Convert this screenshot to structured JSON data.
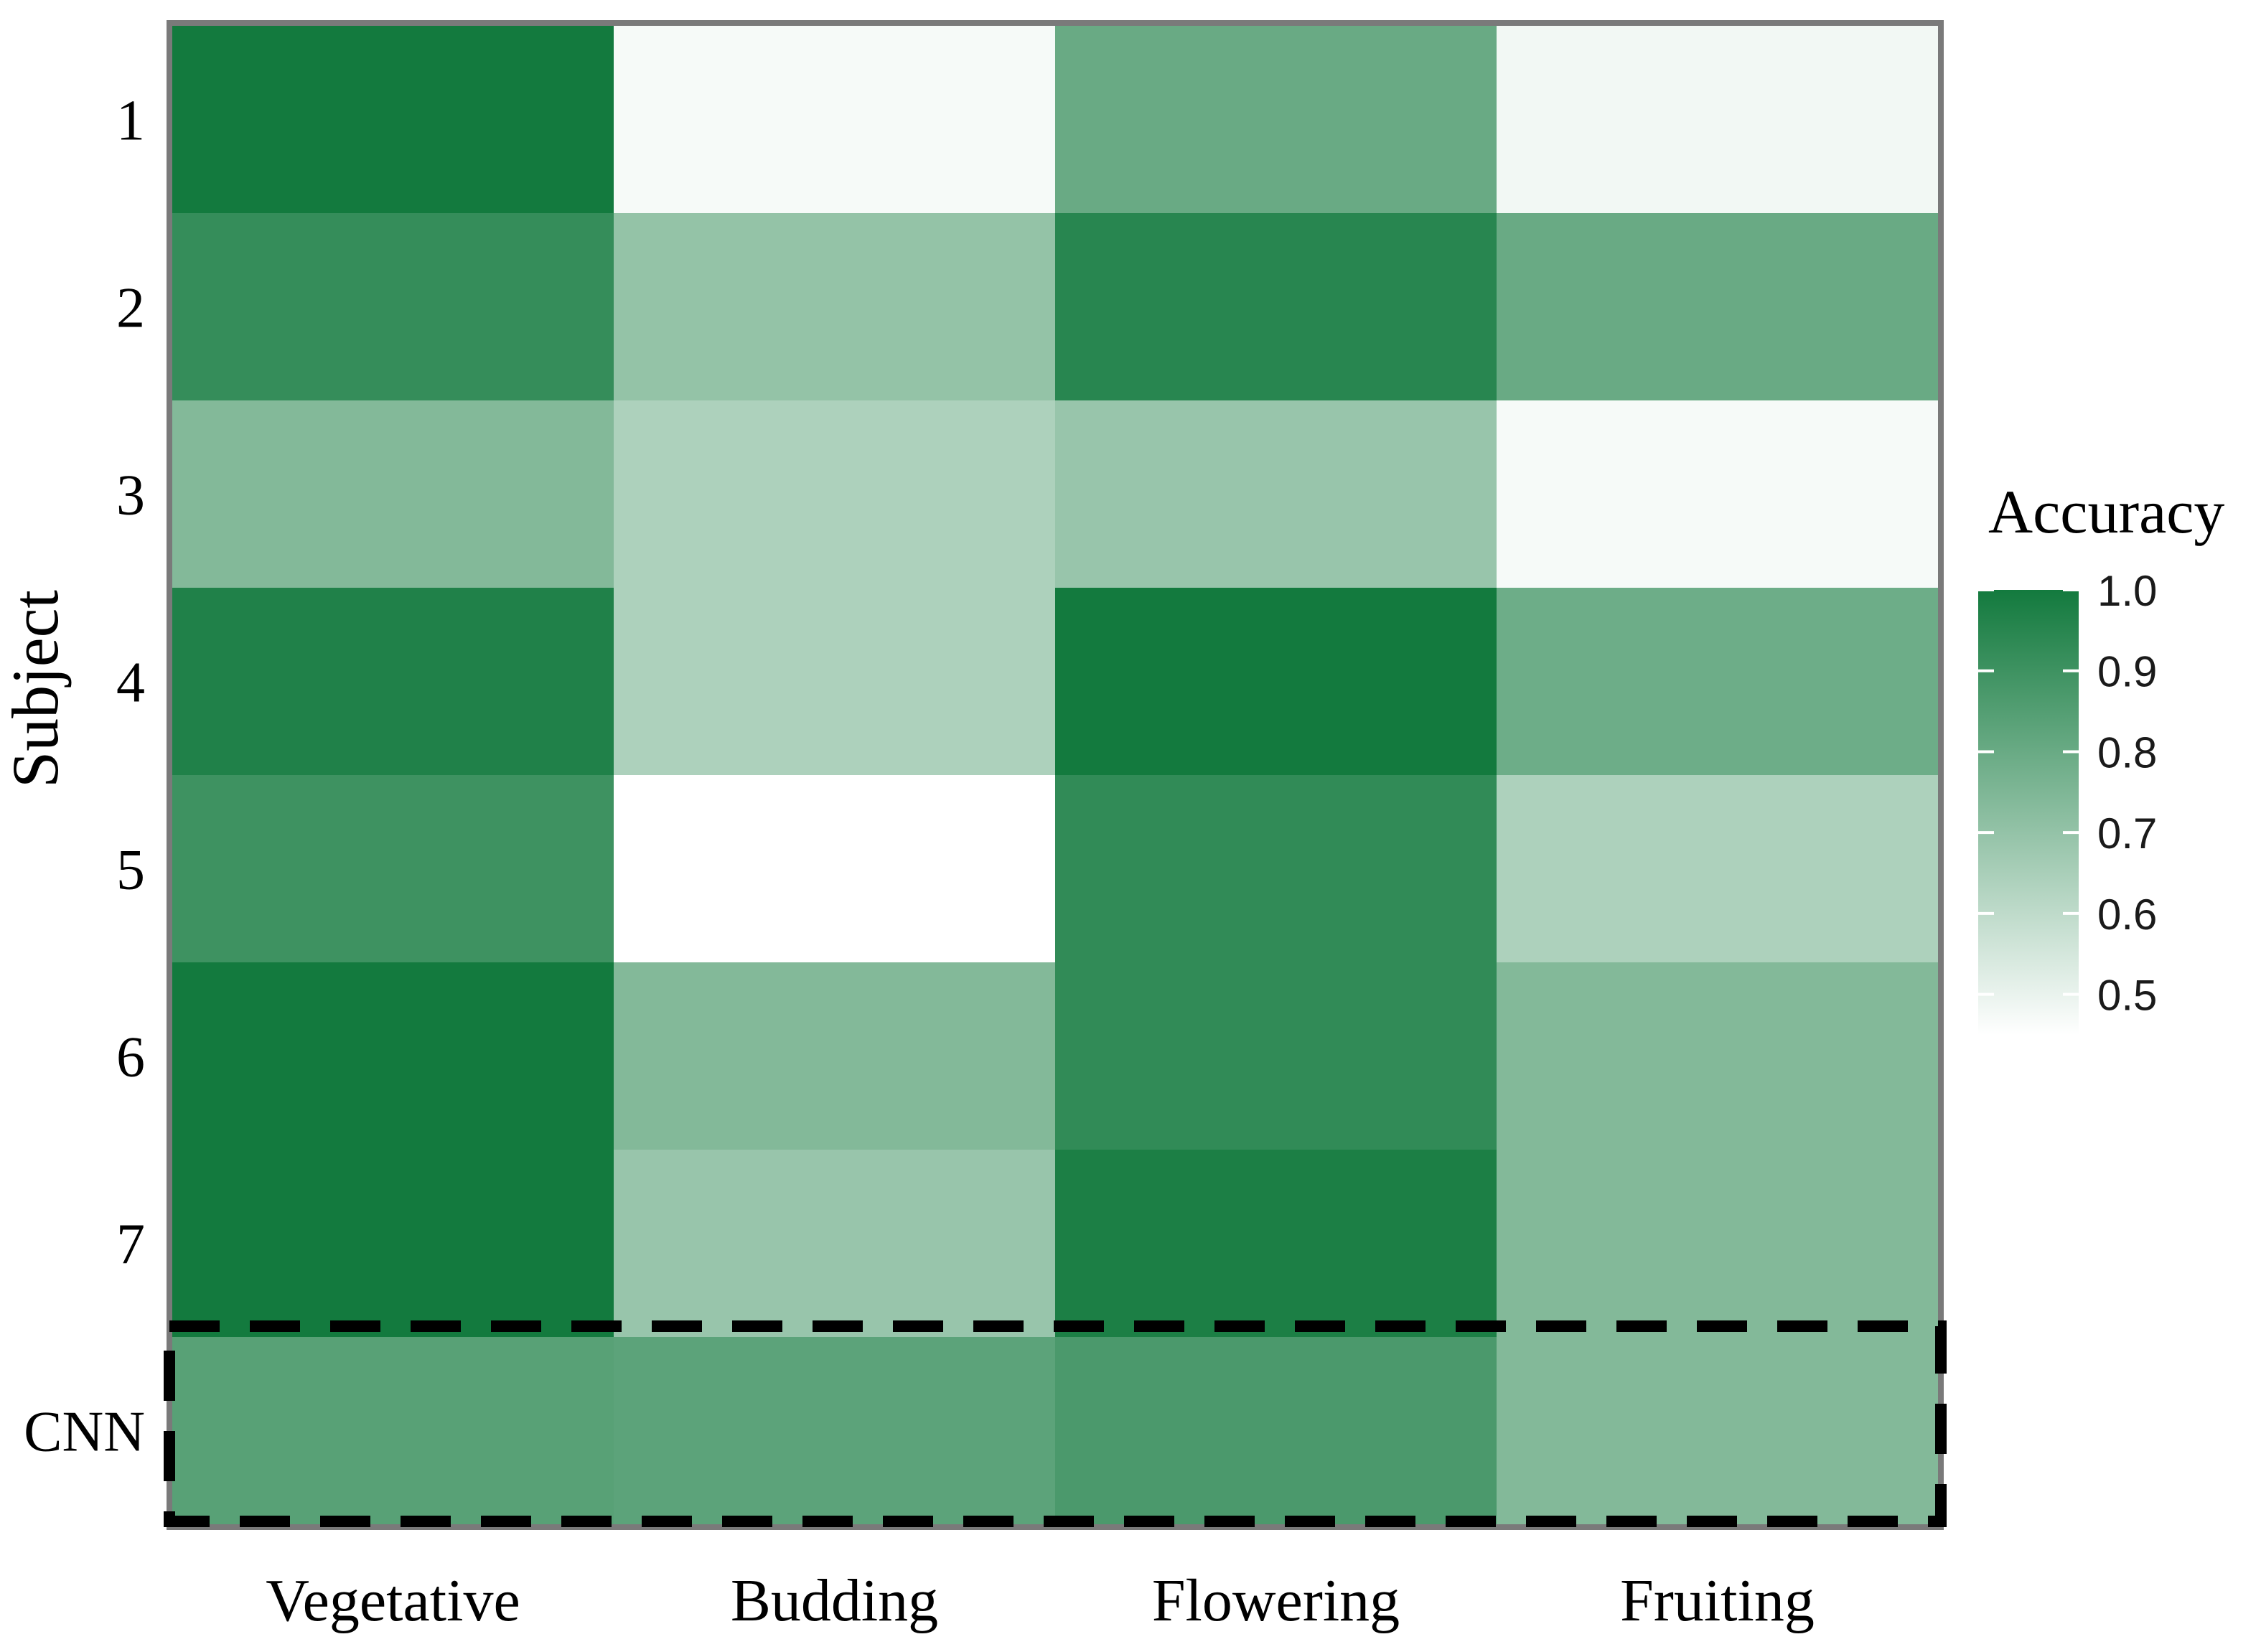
{
  "chart_data": {
    "type": "heatmap",
    "columns": [
      "Vegetative",
      "Budding",
      "Flowering",
      "Fruiting"
    ],
    "rows": [
      "1",
      "2",
      "3",
      "4",
      "5",
      "6",
      "7",
      "CNN"
    ],
    "values": [
      [
        1.0,
        0.47,
        0.8,
        0.48
      ],
      [
        0.92,
        0.7,
        0.95,
        0.8
      ],
      [
        0.74,
        0.64,
        0.69,
        0.47
      ],
      [
        0.97,
        0.64,
        1.0,
        0.79
      ],
      [
        0.9,
        0.42,
        0.93,
        0.64
      ],
      [
        1.0,
        0.74,
        0.93,
        0.74
      ],
      [
        1.0,
        0.69,
        0.98,
        0.74
      ],
      [
        0.84,
        0.83,
        0.87,
        0.74
      ]
    ],
    "ylabel": "Subject",
    "xlabel": "",
    "legend": {
      "title": "Accuracy",
      "ticks": [
        "1.0",
        "0.9",
        "0.8",
        "0.7",
        "0.6",
        "0.5"
      ],
      "range": [
        0.45,
        1.0
      ],
      "placement": "right"
    },
    "colors": {
      "low": "#ffffff",
      "high": "#137a3e",
      "frame": "#7a7a7a",
      "highlight_border": "#000000"
    },
    "highlighted_row": "CNN"
  }
}
